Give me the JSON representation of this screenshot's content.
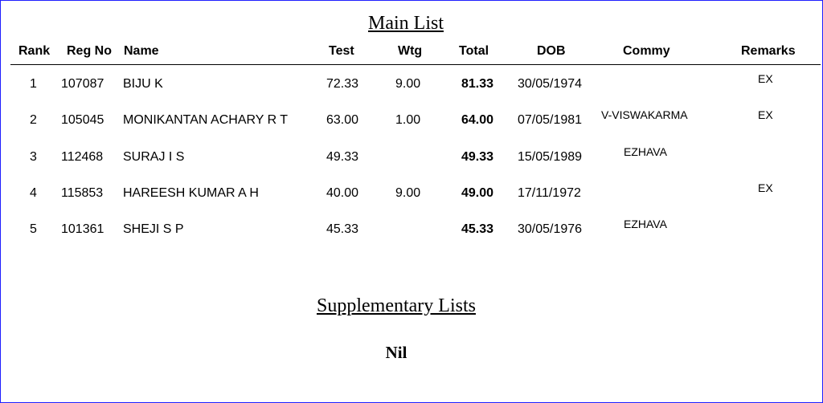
{
  "main_title": "Main List",
  "columns": {
    "rank": "Rank",
    "reg_no": "Reg No",
    "name": "Name",
    "test": "Test",
    "wtg": "Wtg",
    "total": "Total",
    "dob": "DOB",
    "commy": "Commy",
    "remarks": "Remarks"
  },
  "rows": [
    {
      "rank": "1",
      "reg_no": "107087",
      "name": "BIJU K",
      "test": "72.33",
      "wtg": "9.00",
      "total": "81.33",
      "dob": "30/05/1974",
      "commy": "",
      "remarks": "EX"
    },
    {
      "rank": "2",
      "reg_no": "105045",
      "name": "MONIKANTAN ACHARY R T",
      "test": "63.00",
      "wtg": "1.00",
      "total": "64.00",
      "dob": "07/05/1981",
      "commy": "V-VISWAKARMA",
      "remarks": "EX"
    },
    {
      "rank": "3",
      "reg_no": "112468",
      "name": "SURAJ I S",
      "test": "49.33",
      "wtg": "",
      "total": "49.33",
      "dob": "15/05/1989",
      "commy": "EZHAVA",
      "remarks": ""
    },
    {
      "rank": "4",
      "reg_no": "115853",
      "name": "HAREESH KUMAR A H",
      "test": "40.00",
      "wtg": "9.00",
      "total": "49.00",
      "dob": "17/11/1972",
      "commy": "",
      "remarks": "EX"
    },
    {
      "rank": "5",
      "reg_no": "101361",
      "name": "SHEJI S P",
      "test": "45.33",
      "wtg": "",
      "total": "45.33",
      "dob": "30/05/1976",
      "commy": "EZHAVA",
      "remarks": ""
    }
  ],
  "supplementary_title": "Supplementary Lists",
  "supplementary_value": "Nil"
}
